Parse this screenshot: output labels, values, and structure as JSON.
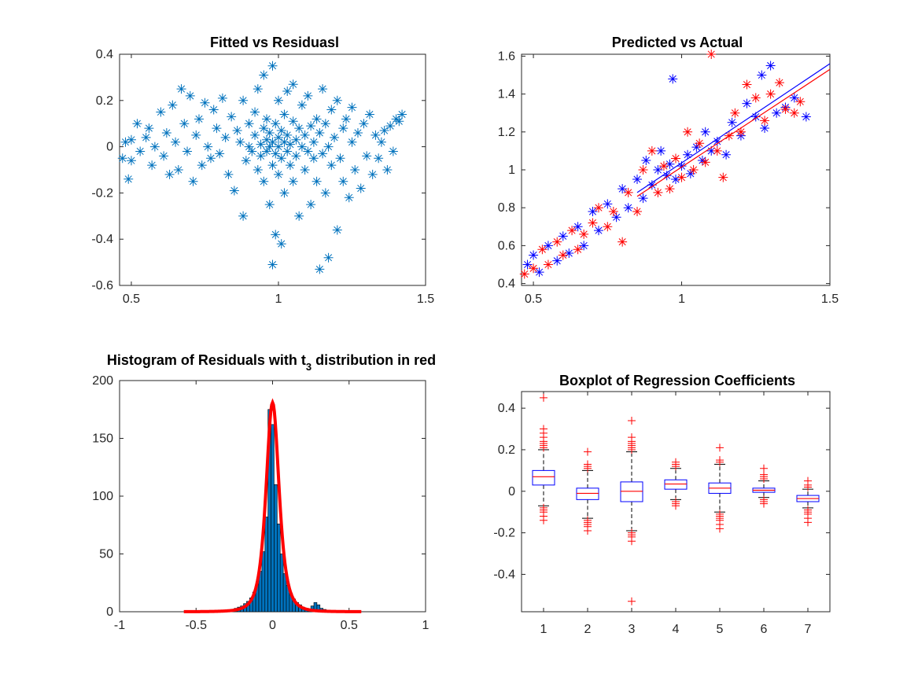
{
  "chart_data": [
    {
      "type": "scatter",
      "title": "Fitted vs Residuasl",
      "xlim": [
        0.46,
        1.5
      ],
      "ylim": [
        -0.6,
        0.4
      ],
      "xticks": [
        "0.5",
        "1",
        "1.5"
      ],
      "yticks": [
        "-0.6",
        "-0.4",
        "-0.2",
        "0",
        "0.2",
        "0.4"
      ],
      "marker": "asterisk",
      "color": "#0072bd",
      "points": [
        [
          0.47,
          -0.05
        ],
        [
          0.48,
          0.02
        ],
        [
          0.49,
          -0.14
        ],
        [
          0.5,
          0.03
        ],
        [
          0.5,
          -0.06
        ],
        [
          0.52,
          0.1
        ],
        [
          0.53,
          -0.02
        ],
        [
          0.55,
          0.04
        ],
        [
          0.56,
          0.08
        ],
        [
          0.57,
          -0.08
        ],
        [
          0.58,
          0.0
        ],
        [
          0.6,
          0.15
        ],
        [
          0.61,
          -0.04
        ],
        [
          0.62,
          0.06
        ],
        [
          0.63,
          -0.12
        ],
        [
          0.64,
          0.18
        ],
        [
          0.65,
          0.02
        ],
        [
          0.66,
          -0.1
        ],
        [
          0.67,
          0.25
        ],
        [
          0.68,
          0.1
        ],
        [
          0.69,
          -0.02
        ],
        [
          0.7,
          0.22
        ],
        [
          0.71,
          -0.15
        ],
        [
          0.72,
          0.05
        ],
        [
          0.73,
          0.12
        ],
        [
          0.74,
          -0.08
        ],
        [
          0.75,
          0.19
        ],
        [
          0.76,
          0.0
        ],
        [
          0.77,
          -0.05
        ],
        [
          0.78,
          0.16
        ],
        [
          0.79,
          0.08
        ],
        [
          0.8,
          -0.03
        ],
        [
          0.81,
          0.21
        ],
        [
          0.82,
          0.04
        ],
        [
          0.83,
          -0.12
        ],
        [
          0.84,
          0.13
        ],
        [
          0.85,
          -0.19
        ],
        [
          0.86,
          0.07
        ],
        [
          0.87,
          0.02
        ],
        [
          0.88,
          -0.3
        ],
        [
          0.88,
          0.2
        ],
        [
          0.89,
          -0.06
        ],
        [
          0.9,
          0.1
        ],
        [
          0.9,
          0.0
        ],
        [
          0.91,
          -0.02
        ],
        [
          0.92,
          0.15
        ],
        [
          0.92,
          0.05
        ],
        [
          0.93,
          -0.1
        ],
        [
          0.93,
          0.25
        ],
        [
          0.94,
          0.01
        ],
        [
          0.94,
          -0.04
        ],
        [
          0.95,
          0.31
        ],
        [
          0.95,
          0.08
        ],
        [
          0.95,
          -0.15
        ],
        [
          0.96,
          0.03
        ],
        [
          0.96,
          -0.02
        ],
        [
          0.96,
          0.12
        ],
        [
          0.97,
          -0.25
        ],
        [
          0.97,
          0.0
        ],
        [
          0.97,
          0.06
        ],
        [
          0.98,
          0.35
        ],
        [
          0.98,
          -0.08
        ],
        [
          0.98,
          0.02
        ],
        [
          0.98,
          -0.51
        ],
        [
          0.99,
          -0.38
        ],
        [
          0.99,
          0.1
        ],
        [
          0.99,
          -0.03
        ],
        [
          1.0,
          0.0
        ],
        [
          1.0,
          0.2
        ],
        [
          1.0,
          -0.12
        ],
        [
          1.0,
          0.04
        ],
        [
          1.01,
          -0.42
        ],
        [
          1.01,
          0.07
        ],
        [
          1.01,
          -0.05
        ],
        [
          1.02,
          0.02
        ],
        [
          1.02,
          0.14
        ],
        [
          1.02,
          -0.2
        ],
        [
          1.03,
          0.05
        ],
        [
          1.03,
          -0.02
        ],
        [
          1.03,
          0.24
        ],
        [
          1.04,
          -0.08
        ],
        [
          1.04,
          0.01
        ],
        [
          1.05,
          0.11
        ],
        [
          1.05,
          -0.15
        ],
        [
          1.05,
          0.27
        ],
        [
          1.06,
          0.03
        ],
        [
          1.06,
          -0.04
        ],
        [
          1.07,
          0.08
        ],
        [
          1.07,
          -0.3
        ],
        [
          1.08,
          0.0
        ],
        [
          1.08,
          0.18
        ],
        [
          1.09,
          -0.1
        ],
        [
          1.09,
          0.05
        ],
        [
          1.1,
          -0.02
        ],
        [
          1.1,
          0.22
        ],
        [
          1.11,
          -0.25
        ],
        [
          1.11,
          0.09
        ],
        [
          1.12,
          -0.05
        ],
        [
          1.12,
          0.02
        ],
        [
          1.13,
          0.12
        ],
        [
          1.13,
          -0.15
        ],
        [
          1.14,
          -0.53
        ],
        [
          1.14,
          0.06
        ],
        [
          1.15,
          -0.03
        ],
        [
          1.15,
          0.25
        ],
        [
          1.16,
          -0.2
        ],
        [
          1.16,
          0.1
        ],
        [
          1.17,
          -0.48
        ],
        [
          1.17,
          0.0
        ],
        [
          1.18,
          -0.08
        ],
        [
          1.18,
          0.16
        ],
        [
          1.19,
          0.04
        ],
        [
          1.2,
          -0.36
        ],
        [
          1.2,
          0.2
        ],
        [
          1.21,
          -0.05
        ],
        [
          1.22,
          0.08
        ],
        [
          1.22,
          -0.15
        ],
        [
          1.23,
          0.12
        ],
        [
          1.24,
          -0.22
        ],
        [
          1.25,
          0.02
        ],
        [
          1.25,
          0.17
        ],
        [
          1.26,
          -0.1
        ],
        [
          1.27,
          0.06
        ],
        [
          1.28,
          -0.18
        ],
        [
          1.29,
          0.1
        ],
        [
          1.3,
          -0.04
        ],
        [
          1.31,
          0.14
        ],
        [
          1.32,
          -0.12
        ],
        [
          1.33,
          0.05
        ],
        [
          1.34,
          -0.05
        ],
        [
          1.35,
          0.02
        ],
        [
          1.36,
          0.07
        ],
        [
          1.37,
          -0.1
        ],
        [
          1.38,
          0.09
        ],
        [
          1.39,
          -0.02
        ],
        [
          1.4,
          0.12
        ],
        [
          1.41,
          0.11
        ],
        [
          1.42,
          0.14
        ]
      ]
    },
    {
      "type": "scatter",
      "title": "Predicted vs Actual",
      "xlim": [
        0.46,
        1.5
      ],
      "ylim": [
        0.39,
        1.61
      ],
      "xticks": [
        "0.5",
        "1",
        "1.5"
      ],
      "yticks": [
        "0.4",
        "0.6",
        "0.8",
        "1",
        "1.2",
        "1.4",
        "1.6"
      ],
      "marker": "asterisk",
      "series": [
        {
          "color": "#0000ff",
          "points": [
            [
              0.48,
              0.5
            ],
            [
              0.5,
              0.55
            ],
            [
              0.52,
              0.46
            ],
            [
              0.55,
              0.6
            ],
            [
              0.58,
              0.52
            ],
            [
              0.6,
              0.65
            ],
            [
              0.62,
              0.56
            ],
            [
              0.65,
              0.7
            ],
            [
              0.67,
              0.6
            ],
            [
              0.7,
              0.78
            ],
            [
              0.72,
              0.68
            ],
            [
              0.75,
              0.82
            ],
            [
              0.78,
              0.75
            ],
            [
              0.8,
              0.9
            ],
            [
              0.82,
              0.8
            ],
            [
              0.85,
              0.95
            ],
            [
              0.87,
              0.85
            ],
            [
              0.88,
              1.05
            ],
            [
              0.9,
              0.92
            ],
            [
              0.92,
              1.0
            ],
            [
              0.93,
              1.1
            ],
            [
              0.95,
              0.97
            ],
            [
              0.96,
              1.03
            ],
            [
              0.97,
              1.48
            ],
            [
              0.98,
              0.95
            ],
            [
              1.0,
              1.02
            ],
            [
              1.02,
              1.08
            ],
            [
              1.03,
              0.98
            ],
            [
              1.05,
              1.12
            ],
            [
              1.07,
              1.05
            ],
            [
              1.08,
              1.2
            ],
            [
              1.1,
              1.1
            ],
            [
              1.12,
              1.15
            ],
            [
              1.15,
              1.08
            ],
            [
              1.17,
              1.25
            ],
            [
              1.2,
              1.18
            ],
            [
              1.22,
              1.35
            ],
            [
              1.25,
              1.28
            ],
            [
              1.27,
              1.5
            ],
            [
              1.28,
              1.22
            ],
            [
              1.3,
              1.55
            ],
            [
              1.32,
              1.3
            ],
            [
              1.35,
              1.33
            ],
            [
              1.38,
              1.38
            ],
            [
              1.42,
              1.28
            ]
          ]
        },
        {
          "color": "#ff0000",
          "points": [
            [
              0.47,
              0.45
            ],
            [
              0.5,
              0.48
            ],
            [
              0.53,
              0.58
            ],
            [
              0.55,
              0.5
            ],
            [
              0.58,
              0.62
            ],
            [
              0.6,
              0.55
            ],
            [
              0.63,
              0.68
            ],
            [
              0.65,
              0.58
            ],
            [
              0.67,
              0.66
            ],
            [
              0.7,
              0.72
            ],
            [
              0.72,
              0.8
            ],
            [
              0.75,
              0.7
            ],
            [
              0.77,
              0.78
            ],
            [
              0.8,
              0.62
            ],
            [
              0.82,
              0.88
            ],
            [
              0.85,
              0.78
            ],
            [
              0.87,
              1.0
            ],
            [
              0.9,
              1.1
            ],
            [
              0.92,
              0.88
            ],
            [
              0.94,
              1.02
            ],
            [
              0.96,
              0.9
            ],
            [
              0.98,
              1.06
            ],
            [
              1.0,
              0.96
            ],
            [
              1.02,
              1.2
            ],
            [
              1.04,
              1.0
            ],
            [
              1.06,
              1.14
            ],
            [
              1.08,
              1.04
            ],
            [
              1.1,
              1.61
            ],
            [
              1.12,
              1.1
            ],
            [
              1.14,
              0.96
            ],
            [
              1.16,
              1.18
            ],
            [
              1.18,
              1.3
            ],
            [
              1.2,
              1.2
            ],
            [
              1.22,
              1.45
            ],
            [
              1.25,
              1.38
            ],
            [
              1.28,
              1.26
            ],
            [
              1.3,
              1.4
            ],
            [
              1.33,
              1.46
            ],
            [
              1.35,
              1.32
            ],
            [
              1.38,
              1.3
            ],
            [
              1.4,
              1.36
            ]
          ]
        }
      ],
      "fit_lines": [
        {
          "color": "#0000ff",
          "from": [
            0.85,
            0.88
          ],
          "to": [
            1.5,
            1.56
          ]
        },
        {
          "color": "#ff0000",
          "from": [
            0.85,
            0.86
          ],
          "to": [
            1.5,
            1.53
          ]
        }
      ]
    },
    {
      "type": "bar",
      "title": "Histogram of Residuals with t",
      "title_sub": "3",
      "title_tail": " distribution in red",
      "xlim": [
        -1,
        1
      ],
      "ylim": [
        0,
        200
      ],
      "xticks": [
        "-1",
        "-0.5",
        "0",
        "0.5",
        "1"
      ],
      "yticks": [
        "0",
        "50",
        "100",
        "150",
        "200"
      ],
      "bar_color": "#0072bd",
      "bin_width": 0.02,
      "bins": [
        [
          -0.3,
          1
        ],
        [
          -0.28,
          1
        ],
        [
          -0.26,
          2
        ],
        [
          -0.24,
          3
        ],
        [
          -0.22,
          4
        ],
        [
          -0.2,
          5
        ],
        [
          -0.18,
          7
        ],
        [
          -0.16,
          9
        ],
        [
          -0.14,
          12
        ],
        [
          -0.12,
          17
        ],
        [
          -0.1,
          24
        ],
        [
          -0.08,
          35
        ],
        [
          -0.06,
          52
        ],
        [
          -0.04,
          82
        ],
        [
          -0.02,
          175
        ],
        [
          0.0,
          162
        ],
        [
          0.02,
          110
        ],
        [
          0.04,
          76
        ],
        [
          0.06,
          50
        ],
        [
          0.08,
          33
        ],
        [
          0.1,
          23
        ],
        [
          0.12,
          16
        ],
        [
          0.14,
          11
        ],
        [
          0.16,
          8
        ],
        [
          0.18,
          6
        ],
        [
          0.2,
          4
        ],
        [
          0.22,
          3
        ],
        [
          0.24,
          2
        ],
        [
          0.26,
          5
        ],
        [
          0.28,
          8
        ],
        [
          0.3,
          6
        ],
        [
          0.32,
          3
        ],
        [
          0.34,
          2
        ],
        [
          0.36,
          1
        ],
        [
          0.38,
          1
        ]
      ],
      "curve": {
        "color": "#ff0000",
        "center": 0.0,
        "scale": 0.045,
        "peak": 181,
        "range": [
          -0.58,
          0.58
        ]
      }
    },
    {
      "type": "box",
      "title": "Boxplot of Regression Coefficients",
      "xlim": [
        0.5,
        7.5
      ],
      "ylim": [
        -0.58,
        0.48
      ],
      "categories": [
        "1",
        "2",
        "3",
        "4",
        "5",
        "6",
        "7"
      ],
      "yticks": [
        "-0.4",
        "-0.2",
        "0",
        "0.2",
        "0.4"
      ],
      "box_color": "#0000ff",
      "median_color": "#ff0000",
      "outlier_color": "#ff0000",
      "boxes": [
        {
          "q1": 0.03,
          "median": 0.07,
          "q3": 0.1,
          "wlo": -0.07,
          "whi": 0.2,
          "outliers": [
            0.45,
            0.3,
            0.28,
            0.26,
            0.24,
            0.23,
            0.22,
            0.21,
            -0.08,
            -0.09,
            -0.1,
            -0.12,
            -0.14
          ]
        },
        {
          "q1": -0.04,
          "median": -0.01,
          "q3": 0.015,
          "wlo": -0.13,
          "whi": 0.1,
          "outliers": [
            0.19,
            0.13,
            0.12,
            0.11,
            -0.14,
            -0.15,
            -0.16,
            -0.17,
            -0.19
          ]
        },
        {
          "q1": -0.05,
          "median": 0.0,
          "q3": 0.045,
          "wlo": -0.19,
          "whi": 0.19,
          "outliers": [
            0.34,
            0.26,
            0.24,
            0.23,
            0.22,
            0.21,
            0.2,
            -0.2,
            -0.21,
            -0.22,
            -0.24,
            -0.53
          ]
        },
        {
          "q1": 0.01,
          "median": 0.035,
          "q3": 0.055,
          "wlo": -0.04,
          "whi": 0.11,
          "outliers": [
            0.14,
            0.13,
            0.12,
            -0.05,
            -0.06,
            -0.07
          ]
        },
        {
          "q1": -0.01,
          "median": 0.015,
          "q3": 0.04,
          "wlo": -0.1,
          "whi": 0.13,
          "outliers": [
            0.21,
            0.15,
            0.14,
            -0.11,
            -0.12,
            -0.13,
            -0.14,
            -0.16,
            -0.18
          ]
        },
        {
          "q1": -0.005,
          "median": 0.005,
          "q3": 0.015,
          "wlo": -0.03,
          "whi": 0.05,
          "outliers": [
            0.11,
            0.08,
            0.07,
            0.06,
            -0.04,
            -0.05,
            -0.06
          ]
        },
        {
          "q1": -0.05,
          "median": -0.035,
          "q3": -0.02,
          "wlo": -0.08,
          "whi": 0.01,
          "outliers": [
            0.05,
            0.03,
            0.02,
            -0.09,
            -0.1,
            -0.11,
            -0.13,
            -0.15
          ]
        }
      ]
    }
  ]
}
